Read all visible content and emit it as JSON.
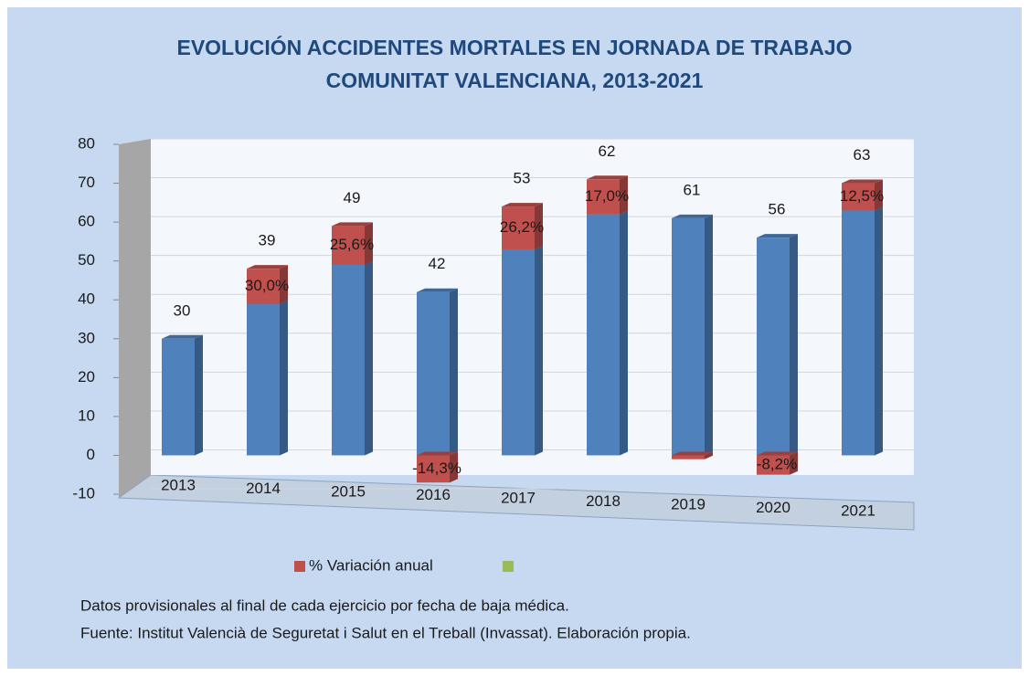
{
  "chart_data": {
    "type": "bar3d",
    "title": "EVOLUCIÓN ACCIDENTES MORTALES EN JORNADA DE TRABAJO",
    "subtitle": "COMUNITAT VALENCIANA, 2013-2021",
    "categories": [
      "2013",
      "2014",
      "2015",
      "2016",
      "2017",
      "2018",
      "2019",
      "2020",
      "2021"
    ],
    "series": [
      {
        "color": "#4f81bd",
        "values": [
          30,
          39,
          49,
          42,
          53,
          62,
          61,
          56,
          63
        ]
      },
      {
        "name": "% Variación anual",
        "color": "#c0504d",
        "values": [
          null,
          9,
          10,
          -7,
          11,
          9,
          -1,
          -5,
          7
        ],
        "labels": [
          null,
          "30,0%",
          "25,6%",
          "-14,3%",
          "26,2%",
          "17,0%",
          null,
          "-8,2%",
          "12,5%"
        ]
      },
      {
        "color": "#9bbb59",
        "values": [
          null,
          null,
          null,
          null,
          null,
          null,
          null,
          null,
          null
        ]
      }
    ],
    "ylim": [
      -10,
      80
    ],
    "yticks": [
      -10,
      0,
      10,
      20,
      30,
      40,
      50,
      60,
      70,
      80
    ],
    "grid": true,
    "legend": "bottom",
    "notes": [
      "Datos provisionales al final de cada ejercicio por fecha de baja médica.",
      "Fuente: Institut Valencià de Seguretat i Salut en el Treball (Invassat). Elaboración propia."
    ]
  }
}
